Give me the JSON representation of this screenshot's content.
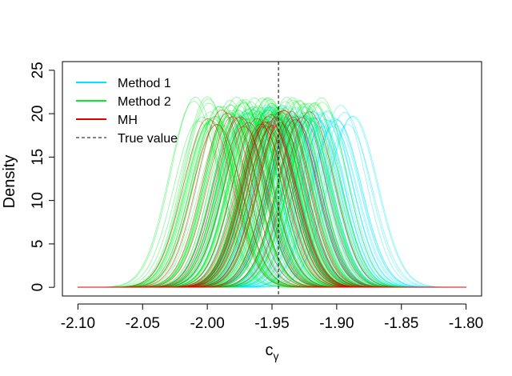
{
  "chart_data": {
    "type": "line",
    "title": "",
    "xlabel": "c",
    "xlabel_subscript": "γ",
    "ylabel": "Density",
    "xlim": [
      -2.1,
      -1.8
    ],
    "ylim": [
      0,
      25
    ],
    "xticks": [
      -2.1,
      -2.05,
      -2.0,
      -1.95,
      -1.9,
      -1.85,
      -1.8
    ],
    "xtick_labels": [
      "-2.10",
      "-2.05",
      "-2.00",
      "-1.95",
      "-1.90",
      "-1.85",
      "-1.80"
    ],
    "yticks": [
      0,
      5,
      10,
      15,
      20,
      25
    ],
    "ytick_labels": [
      "0",
      "5",
      "10",
      "15",
      "20",
      "25"
    ],
    "legend_position": "top-left",
    "reference_line": {
      "label": "True value",
      "x": -1.945,
      "style": "dashed",
      "color": "#000000"
    },
    "density_sd": 0.019,
    "series": [
      {
        "name": "Method 1",
        "color": "#00e5ff",
        "curve_count": 80,
        "mean_range": [
          -1.99,
          -1.875
        ],
        "peak_range": [
          18.5,
          21.0
        ]
      },
      {
        "name": "Method 2",
        "color": "#00ee22",
        "curve_count": 140,
        "mean_range": [
          -2.015,
          -1.905
        ],
        "peak_range": [
          18.5,
          22.0
        ]
      },
      {
        "name": "MH",
        "color": "#e00000",
        "curve_count": 30,
        "mean_range": [
          -2.0,
          -1.91
        ],
        "peak_range": [
          18.5,
          20.5
        ]
      }
    ],
    "legend": [
      {
        "label": "Method 1",
        "color": "#00e5ff",
        "style": "solid"
      },
      {
        "label": "Method 2",
        "color": "#00ee22",
        "style": "solid"
      },
      {
        "label": "MH",
        "color": "#e00000",
        "style": "solid"
      },
      {
        "label": "True value",
        "color": "#000000",
        "style": "dashed"
      }
    ]
  }
}
